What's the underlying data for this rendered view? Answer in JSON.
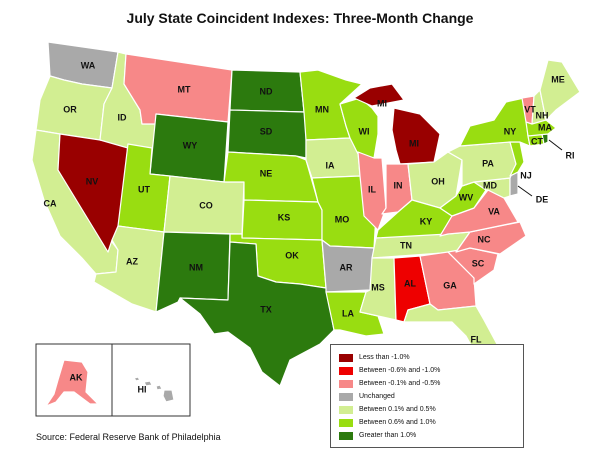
{
  "title": "July State Coincident Indexes: Three-Month Change",
  "source": "Source: Federal Reserve Bank of Philadelphia",
  "legend": [
    {
      "label": "Less than -1.0%",
      "color": "#990000"
    },
    {
      "label": "Between -0.6% and -1.0%",
      "color": "#ee0000"
    },
    {
      "label": "Between -0.1% and -0.5%",
      "color": "#f78888"
    },
    {
      "label": "Unchanged",
      "color": "#a9a9a9"
    },
    {
      "label": "Between 0.1% and 0.5%",
      "color": "#d2ee92"
    },
    {
      "label": "Between 0.6% and 1.0%",
      "color": "#99dd11"
    },
    {
      "label": "Greater than 1.0%",
      "color": "#2c7a0e"
    }
  ],
  "states": {
    "WA": {
      "label": "WA",
      "category": 3
    },
    "OR": {
      "label": "OR",
      "category": 4
    },
    "CA": {
      "label": "CA",
      "category": 4
    },
    "NV": {
      "label": "NV",
      "category": 0
    },
    "ID": {
      "label": "ID",
      "category": 4
    },
    "MT": {
      "label": "MT",
      "category": 2
    },
    "WY": {
      "label": "WY",
      "category": 6
    },
    "UT": {
      "label": "UT",
      "category": 5
    },
    "AZ": {
      "label": "AZ",
      "category": 4
    },
    "CO": {
      "label": "CO",
      "category": 4
    },
    "NM": {
      "label": "NM",
      "category": 6
    },
    "ND": {
      "label": "ND",
      "category": 6
    },
    "SD": {
      "label": "SD",
      "category": 6
    },
    "NE": {
      "label": "NE",
      "category": 5
    },
    "KS": {
      "label": "KS",
      "category": 5
    },
    "OK": {
      "label": "OK",
      "category": 5
    },
    "TX": {
      "label": "TX",
      "category": 6
    },
    "MN": {
      "label": "MN",
      "category": 5
    },
    "IA": {
      "label": "IA",
      "category": 4
    },
    "MO": {
      "label": "MO",
      "category": 5
    },
    "AR": {
      "label": "AR",
      "category": 3
    },
    "LA": {
      "label": "LA",
      "category": 5
    },
    "WI": {
      "label": "WI",
      "category": 5
    },
    "IL": {
      "label": "IL",
      "category": 2
    },
    "MI": {
      "label": "MI",
      "category": 0
    },
    "IN": {
      "label": "IN",
      "category": 2
    },
    "OH": {
      "label": "OH",
      "category": 4
    },
    "KY": {
      "label": "KY",
      "category": 5
    },
    "TN": {
      "label": "TN",
      "category": 4
    },
    "MS": {
      "label": "MS",
      "category": 4
    },
    "AL": {
      "label": "AL",
      "category": 1
    },
    "GA": {
      "label": "GA",
      "category": 2
    },
    "FL": {
      "label": "FL",
      "category": 4
    },
    "SC": {
      "label": "SC",
      "category": 2
    },
    "NC": {
      "label": "NC",
      "category": 2
    },
    "VA": {
      "label": "VA",
      "category": 2
    },
    "WV": {
      "label": "WV",
      "category": 5
    },
    "MD": {
      "label": "MD",
      "category": 4
    },
    "DE": {
      "label": "DE",
      "category": 3
    },
    "PA": {
      "label": "PA",
      "category": 4
    },
    "NJ": {
      "label": "NJ",
      "category": 5
    },
    "NY": {
      "label": "NY",
      "category": 5
    },
    "CT": {
      "label": "CT",
      "category": 5
    },
    "RI": {
      "label": "RI",
      "category": 6
    },
    "MA": {
      "label": "MA",
      "category": 5
    },
    "VT": {
      "label": "VT",
      "category": 2
    },
    "NH": {
      "label": "NH",
      "category": 4
    },
    "ME": {
      "label": "ME",
      "category": 4
    },
    "AK": {
      "label": "AK",
      "category": 2
    },
    "HI": {
      "label": "HI",
      "category": 3
    }
  }
}
